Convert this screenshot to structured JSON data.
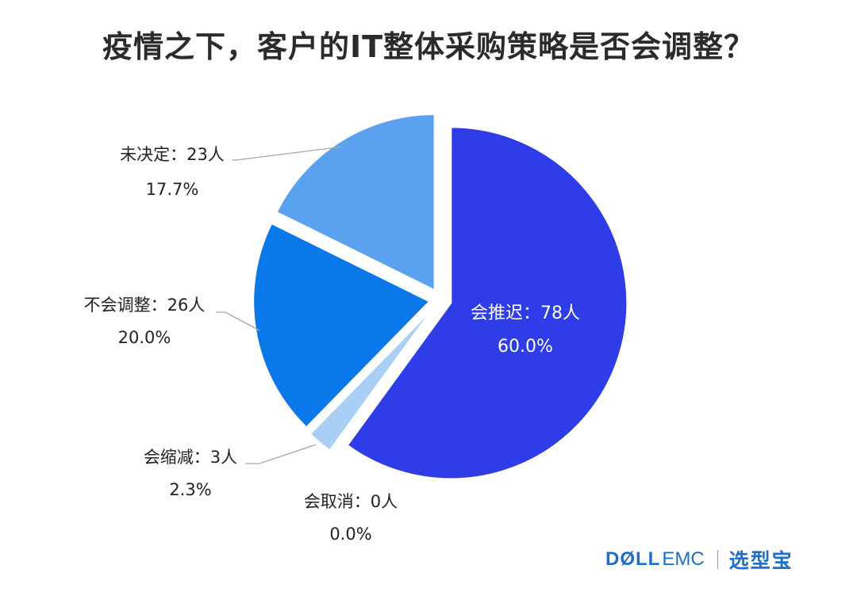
{
  "title": "疫情之下，客户的IT整体采购策略是否会调整？",
  "chart_data": {
    "type": "pie",
    "title": "疫情之下，客户的IT整体采购策略是否会调整？",
    "slices": [
      {
        "label": "会推迟：78人",
        "value": 78,
        "percent": "60.0%",
        "color": "#2e3de8"
      },
      {
        "label": "会取消：0人",
        "value": 0,
        "percent": "0.0%",
        "color": "#1f4fd8"
      },
      {
        "label": "会缩减：3人",
        "value": 3,
        "percent": "2.3%",
        "color": "#a9cff7"
      },
      {
        "label": "不会调整：26人",
        "value": 26,
        "percent": "20.0%",
        "color": "#0b78ea"
      },
      {
        "label": "未决定：23人",
        "value": 23,
        "percent": "17.7%",
        "color": "#5aa2ef"
      }
    ]
  },
  "brand": {
    "dell": "DØLL",
    "emc": "EMC",
    "cn": "选型宝"
  }
}
